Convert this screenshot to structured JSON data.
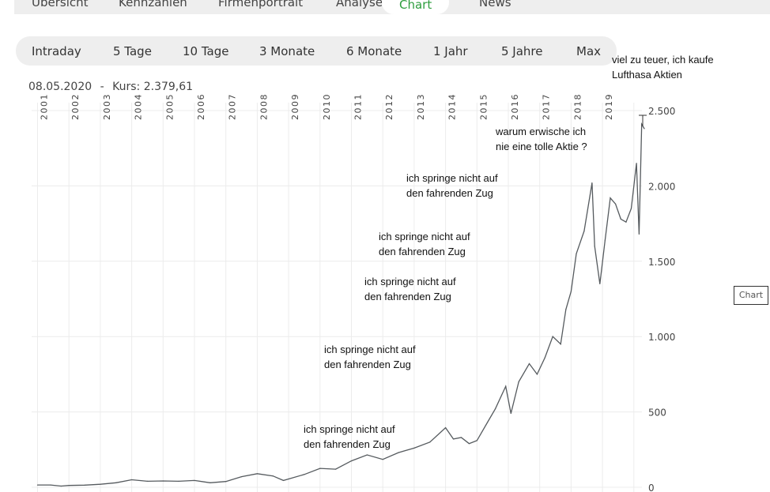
{
  "nav": {
    "tabs": [
      {
        "label": "Übersicht"
      },
      {
        "label": "Kennzahlen"
      },
      {
        "label": "Firmenportrait"
      },
      {
        "label": "Analyse"
      },
      {
        "label": "Chart",
        "active": true
      },
      {
        "label": "News"
      }
    ]
  },
  "ranges": [
    {
      "label": "Intraday"
    },
    {
      "label": "5 Tage"
    },
    {
      "label": "10 Tage"
    },
    {
      "label": "3 Monate"
    },
    {
      "label": "6 Monate"
    },
    {
      "label": "1 Jahr"
    },
    {
      "label": "5 Jahre"
    },
    {
      "label": "Max",
      "selected": true
    }
  ],
  "header": {
    "date": "08.05.2020",
    "separator": "-",
    "kurs": "Kurs: 2.379,61"
  },
  "chart_button": "Chart",
  "annotations": [
    {
      "text": "viel zu teuer, ich kaufe\nLufthasa Aktien"
    },
    {
      "text": "warum erwische ich\nnie eine tolle Aktie ?"
    },
    {
      "text": "ich springe nicht auf\nden fahrenden Zug"
    },
    {
      "text": "ich springe nicht auf\nden fahrenden Zug"
    },
    {
      "text": "ich springe nicht auf\nden fahrenden Zug"
    },
    {
      "text": "ich springe nicht auf\nden fahrenden Zug"
    },
    {
      "text": "ich springe nicht auf\nden fahrenden Zug"
    }
  ],
  "chart_data": {
    "type": "line",
    "line_color": "#555a5e",
    "grid": true,
    "x_tick_labels": [
      "2001",
      "2002",
      "2003",
      "2004",
      "2005",
      "2006",
      "2007",
      "2008",
      "2009",
      "2010",
      "2011",
      "2012",
      "2013",
      "2014",
      "2015",
      "2016",
      "2017",
      "2018",
      "2019"
    ],
    "y_tick_labels": [
      "0",
      "500",
      "1.000",
      "1.500",
      "2.000",
      "2.500"
    ],
    "y_ticks": [
      0,
      500,
      1000,
      1500,
      2000,
      2500
    ],
    "ylim": [
      0,
      2500
    ],
    "points": [
      [
        "2001-01",
        15
      ],
      [
        "2001-06",
        15
      ],
      [
        "2001-10",
        8
      ],
      [
        "2002-01",
        12
      ],
      [
        "2002-07",
        14
      ],
      [
        "2003-01",
        20
      ],
      [
        "2003-07",
        30
      ],
      [
        "2004-01",
        50
      ],
      [
        "2004-07",
        40
      ],
      [
        "2005-01",
        42
      ],
      [
        "2005-07",
        40
      ],
      [
        "2006-01",
        45
      ],
      [
        "2006-07",
        30
      ],
      [
        "2007-01",
        38
      ],
      [
        "2007-07",
        70
      ],
      [
        "2008-01",
        90
      ],
      [
        "2008-07",
        75
      ],
      [
        "2008-11",
        45
      ],
      [
        "2009-01",
        55
      ],
      [
        "2009-07",
        85
      ],
      [
        "2010-01",
        125
      ],
      [
        "2010-07",
        120
      ],
      [
        "2011-01",
        175
      ],
      [
        "2011-07",
        215
      ],
      [
        "2012-01",
        185
      ],
      [
        "2012-07",
        230
      ],
      [
        "2013-01",
        260
      ],
      [
        "2013-07",
        300
      ],
      [
        "2014-01",
        395
      ],
      [
        "2014-04",
        320
      ],
      [
        "2014-07",
        330
      ],
      [
        "2014-10",
        290
      ],
      [
        "2015-01",
        310
      ],
      [
        "2015-05",
        430
      ],
      [
        "2015-08",
        520
      ],
      [
        "2015-12",
        670
      ],
      [
        "2016-02",
        490
      ],
      [
        "2016-05",
        700
      ],
      [
        "2016-09",
        820
      ],
      [
        "2016-12",
        750
      ],
      [
        "2017-03",
        860
      ],
      [
        "2017-06",
        1000
      ],
      [
        "2017-09",
        950
      ],
      [
        "2017-11",
        1180
      ],
      [
        "2018-01",
        1300
      ],
      [
        "2018-03",
        1550
      ],
      [
        "2018-06",
        1700
      ],
      [
        "2018-09",
        2020
      ],
      [
        "2018-10",
        1600
      ],
      [
        "2018-12",
        1350
      ],
      [
        "2019-02",
        1640
      ],
      [
        "2019-04",
        1920
      ],
      [
        "2019-06",
        1880
      ],
      [
        "2019-08",
        1780
      ],
      [
        "2019-10",
        1760
      ],
      [
        "2019-12",
        1850
      ],
      [
        "2020-02",
        2150
      ],
      [
        "2020-03",
        1680
      ],
      [
        "2020-04",
        2410
      ],
      [
        "2020-05",
        2380
      ]
    ]
  }
}
